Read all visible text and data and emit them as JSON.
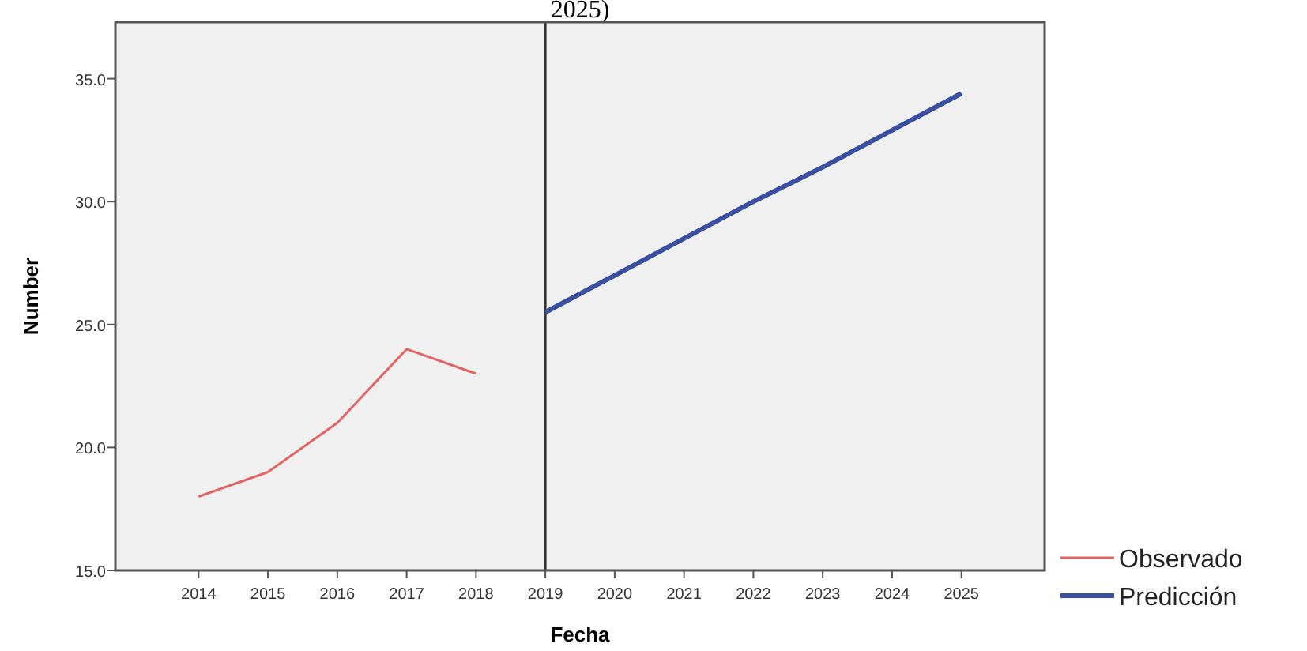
{
  "chart_data": {
    "type": "line",
    "title": "2025)",
    "xlabel": "Fecha",
    "ylabel": "Number",
    "xlim": [
      2012.8,
      2026.2
    ],
    "xticks": [
      2014,
      2015,
      2016,
      2017,
      2018,
      2019,
      2020,
      2021,
      2022,
      2023,
      2024,
      2025
    ],
    "ylim": [
      15,
      37.3
    ],
    "yticks": [
      {
        "value": 15,
        "label": "15.0"
      },
      {
        "value": 20,
        "label": "20.0"
      },
      {
        "value": 25,
        "label": "25.0"
      },
      {
        "value": 30,
        "label": "30.0"
      },
      {
        "value": 35,
        "label": "35.0"
      }
    ],
    "series": [
      {
        "name": "Observado",
        "color": "#e06666",
        "x": [
          2014,
          2015,
          2016,
          2017,
          2018
        ],
        "values": [
          18,
          19,
          21,
          24,
          23
        ]
      },
      {
        "name": "Predicción",
        "color": "#3a4fa0",
        "x": [
          2019,
          2020,
          2021,
          2022,
          2023,
          2024,
          2025
        ],
        "values": [
          25.5,
          27.0,
          28.5,
          30.0,
          31.4,
          32.9,
          34.4
        ]
      }
    ],
    "ref_lines": [
      {
        "axis": "x",
        "value": 2019,
        "color": "#333333"
      }
    ],
    "grid": false,
    "legend": "bottom right"
  }
}
